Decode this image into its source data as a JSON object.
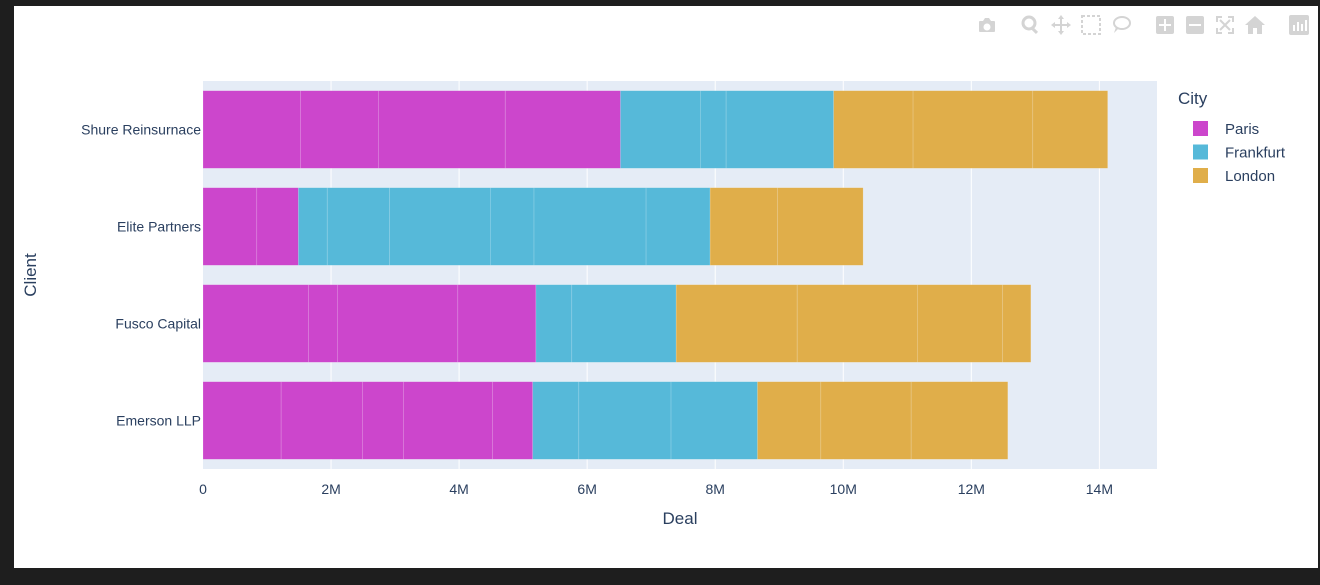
{
  "modebar": {
    "buttons": [
      {
        "icon": "camera-icon"
      },
      {
        "icon": "zoom-icon"
      },
      {
        "icon": "pan-icon"
      },
      {
        "icon": "box-select-icon"
      },
      {
        "icon": "lasso-select-icon"
      },
      {
        "icon": "zoom-in-icon"
      },
      {
        "icon": "zoom-out-icon"
      },
      {
        "icon": "autoscale-icon"
      },
      {
        "icon": "reset-axes-icon"
      },
      {
        "icon": "plotly-logo-icon"
      }
    ]
  },
  "chart_data": {
    "type": "bar",
    "orientation": "horizontal",
    "barmode": "stack",
    "title": "",
    "xlabel": "Deal",
    "ylabel": "Client",
    "xlim": [
      0,
      14900000
    ],
    "xticks": [
      0,
      2000000,
      4000000,
      6000000,
      8000000,
      10000000,
      12000000,
      14000000
    ],
    "xtick_labels": [
      "0",
      "2M",
      "4M",
      "6M",
      "8M",
      "10M",
      "12M",
      "14M"
    ],
    "categories": [
      "Emerson LLP",
      "Fusco Capital",
      "Elite Partners",
      "Shure Reinsurnace"
    ],
    "grid": true,
    "legend": {
      "title": "City",
      "position": "right",
      "entries": [
        "Paris",
        "Frankfurt",
        "London"
      ]
    },
    "colors": {
      "Paris": "#cc46cc",
      "Frankfurt": "#56b9d9",
      "London": "#e0ae4a",
      "plot_bg": "#e5ecf6"
    },
    "series": [
      {
        "name": "Paris",
        "segments": [
          [
            1220000,
            1270000,
            640000,
            1390000,
            630000
          ],
          [
            1650000,
            450000,
            1880000,
            1220000
          ],
          [
            840000,
            650000
          ],
          [
            1520000,
            1220000,
            1980000,
            1800000
          ]
        ]
      },
      {
        "name": "Frankfurt",
        "segments": [
          [
            720000,
            1440000,
            1350000
          ],
          [
            560000,
            1630000
          ],
          [
            450000,
            970000,
            1580000,
            680000,
            1750000,
            1000000
          ],
          [
            1250000,
            400000,
            1680000
          ]
        ]
      },
      {
        "name": "London",
        "segments": [
          [
            990000,
            1410000,
            1510000
          ],
          [
            1890000,
            1880000,
            1330000,
            440000
          ],
          [
            1050000,
            1340000
          ],
          [
            1240000,
            1870000,
            1170000
          ]
        ]
      }
    ]
  }
}
